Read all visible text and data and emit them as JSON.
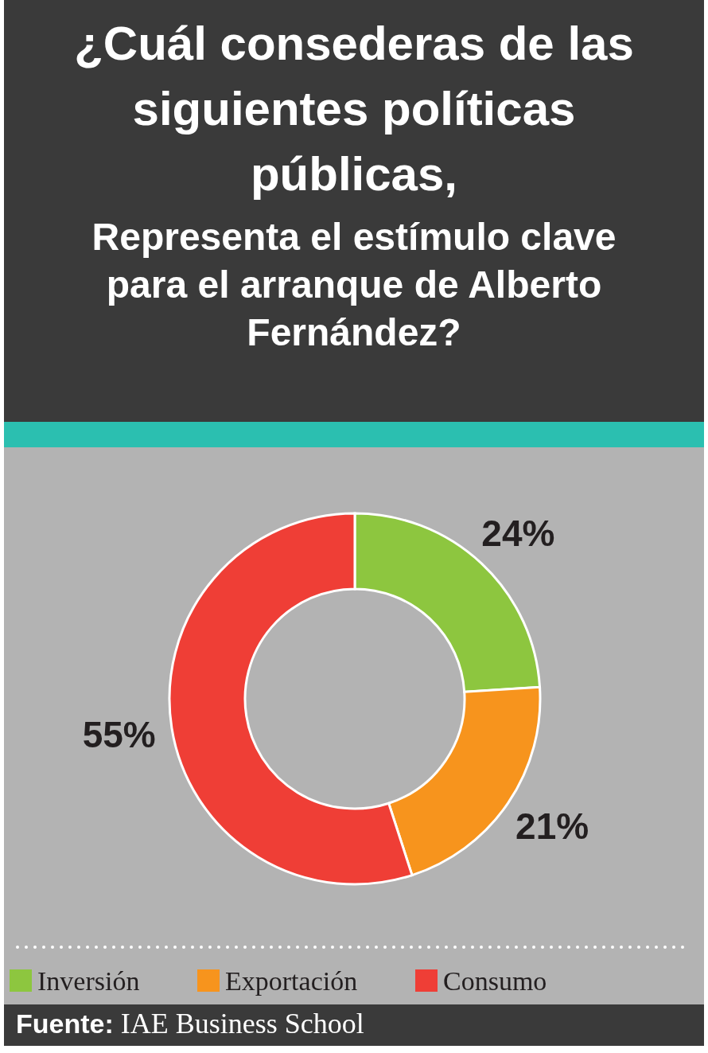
{
  "chart_data": {
    "type": "donut",
    "title": "¿Cuál consederas de las siguientes políticas públicas,",
    "subtitle": "Representa el estímulo clave para el arranque de Alberto Fernández?",
    "categories": [
      "Inversión",
      "Exportación",
      "Consumo"
    ],
    "values": [
      24,
      21,
      55
    ],
    "value_labels": [
      "24%",
      "21%",
      "55%"
    ],
    "colors": [
      "#8dc63f",
      "#f7941d",
      "#ef3e36"
    ],
    "legend": "bottom",
    "annotations": [
      "Fuente: IAE Business School"
    ]
  }
}
